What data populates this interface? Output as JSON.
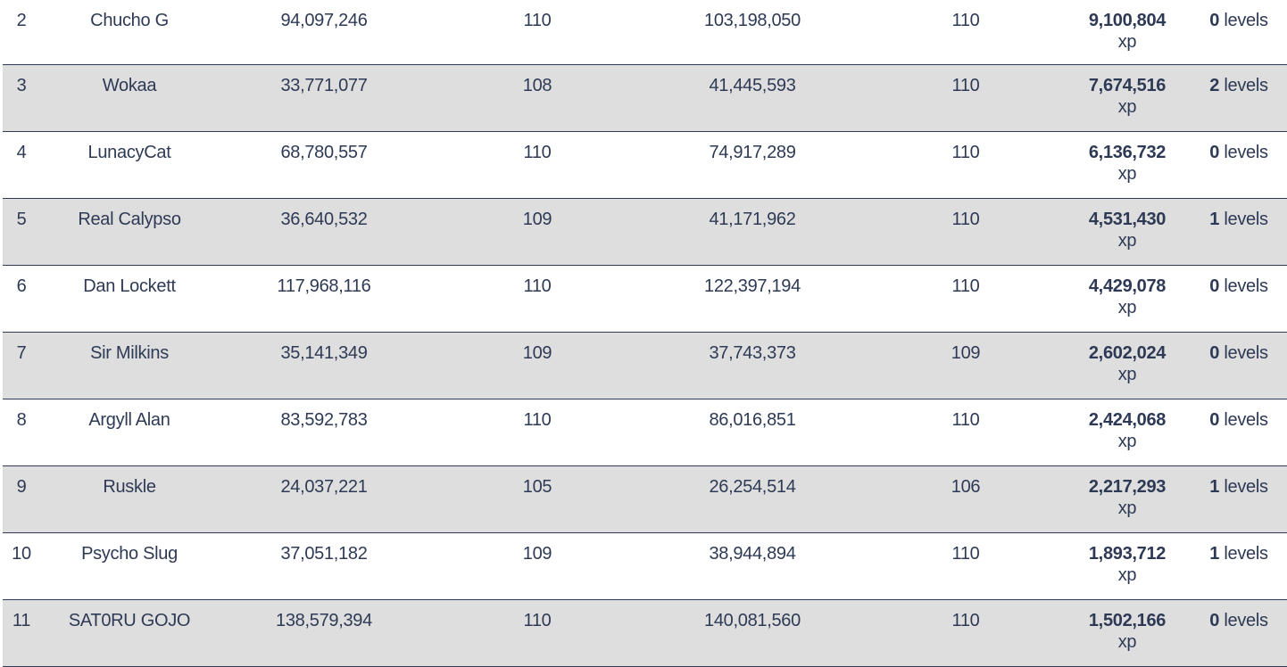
{
  "rows": [
    {
      "rank": "2",
      "name": "Chucho G",
      "xp_start": "94,097,246",
      "level_start": "110",
      "xp_end": "103,198,050",
      "level_end": "110",
      "xp_gain": "9,100,804",
      "xp_unit": "xp",
      "levels_gained": "0",
      "levels_unit": "levels"
    },
    {
      "rank": "3",
      "name": "Wokaa",
      "xp_start": "33,771,077",
      "level_start": "108",
      "xp_end": "41,445,593",
      "level_end": "110",
      "xp_gain": "7,674,516",
      "xp_unit": "xp",
      "levels_gained": "2",
      "levels_unit": "levels"
    },
    {
      "rank": "4",
      "name": "LunacyCat",
      "xp_start": "68,780,557",
      "level_start": "110",
      "xp_end": "74,917,289",
      "level_end": "110",
      "xp_gain": "6,136,732",
      "xp_unit": "xp",
      "levels_gained": "0",
      "levels_unit": "levels"
    },
    {
      "rank": "5",
      "name": "Real Calypso",
      "xp_start": "36,640,532",
      "level_start": "109",
      "xp_end": "41,171,962",
      "level_end": "110",
      "xp_gain": "4,531,430",
      "xp_unit": "xp",
      "levels_gained": "1",
      "levels_unit": "levels"
    },
    {
      "rank": "6",
      "name": "Dan Lockett",
      "xp_start": "117,968,116",
      "level_start": "110",
      "xp_end": "122,397,194",
      "level_end": "110",
      "xp_gain": "4,429,078",
      "xp_unit": "xp",
      "levels_gained": "0",
      "levels_unit": "levels"
    },
    {
      "rank": "7",
      "name": "Sir Milkins",
      "xp_start": "35,141,349",
      "level_start": "109",
      "xp_end": "37,743,373",
      "level_end": "109",
      "xp_gain": "2,602,024",
      "xp_unit": "xp",
      "levels_gained": "0",
      "levels_unit": "levels"
    },
    {
      "rank": "8",
      "name": "Argyll Alan",
      "xp_start": "83,592,783",
      "level_start": "110",
      "xp_end": "86,016,851",
      "level_end": "110",
      "xp_gain": "2,424,068",
      "xp_unit": "xp",
      "levels_gained": "0",
      "levels_unit": "levels"
    },
    {
      "rank": "9",
      "name": "Ruskle",
      "xp_start": "24,037,221",
      "level_start": "105",
      "xp_end": "26,254,514",
      "level_end": "106",
      "xp_gain": "2,217,293",
      "xp_unit": "xp",
      "levels_gained": "1",
      "levels_unit": "levels"
    },
    {
      "rank": "10",
      "name": "Psycho Slug",
      "xp_start": "37,051,182",
      "level_start": "109",
      "xp_end": "38,944,894",
      "level_end": "110",
      "xp_gain": "1,893,712",
      "xp_unit": "xp",
      "levels_gained": "1",
      "levels_unit": "levels"
    },
    {
      "rank": "11",
      "name": "SAT0RU GOJO",
      "xp_start": "138,579,394",
      "level_start": "110",
      "xp_end": "140,081,560",
      "level_end": "110",
      "xp_gain": "1,502,166",
      "xp_unit": "xp",
      "levels_gained": "0",
      "levels_unit": "levels"
    }
  ]
}
